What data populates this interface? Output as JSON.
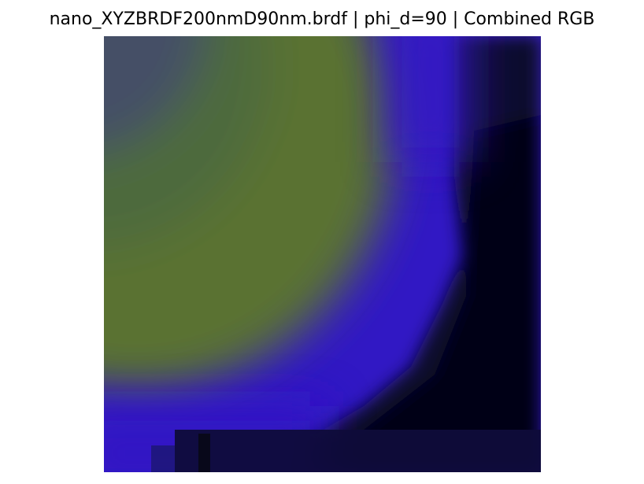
{
  "chart_data": {
    "type": "heatmap",
    "title": "nano_XYZBRDF200nmD90nm.brdf | phi_d=90 | Combined RGB",
    "xlabel": "",
    "ylabel": "",
    "axes_visible": false,
    "grid": false,
    "legend": "none",
    "colormap": "combined RGB",
    "colors": {
      "olive_green": "#5e7530",
      "slate_blue": "#45506b",
      "violet_blue": "#3119c2",
      "dark_navy": "#12104a",
      "near_black": "#050508"
    }
  }
}
